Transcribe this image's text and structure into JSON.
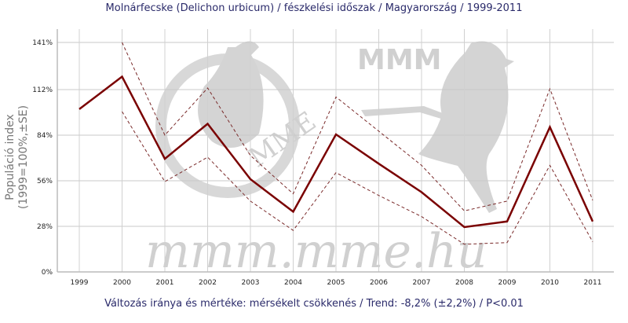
{
  "chart_data": {
    "type": "line",
    "title": "Molnárfecske (Delichon urbicum) / fészkelési időszak / Magyarország / 1999-2011",
    "ylabel_line1": "Populáció index",
    "ylabel_line2": "(1999=100%,±SE)",
    "xlabel": "",
    "footer": "Változás iránya és mértéke: mérsékelt csökkenés / Trend: -8,2% (±2,2%) / P<0.01",
    "x": [
      1999,
      2000,
      2001,
      2002,
      2003,
      2004,
      2005,
      2006,
      2007,
      2008,
      2009,
      2010,
      2011
    ],
    "ylim": [
      0,
      141
    ],
    "yticks": [
      0,
      28,
      56,
      84,
      112,
      141
    ],
    "ytick_labels": [
      "0%",
      "28%",
      "56%",
      "84%",
      "112%",
      "141%"
    ],
    "grid": true,
    "series": [
      {
        "role": "index",
        "style": "solid",
        "color": "#7a0000",
        "values": [
          100,
          120,
          69.5,
          91,
          57,
          37,
          84.5,
          66.5,
          49,
          27.5,
          31,
          89,
          31
        ]
      },
      {
        "role": "upper SE",
        "style": "dashed",
        "color": "#7a2a2a",
        "values": [
          null,
          141,
          84,
          113,
          71.5,
          48,
          107.5,
          86.5,
          65.5,
          37.5,
          43.5,
          112.5,
          44
        ]
      },
      {
        "role": "lower SE",
        "style": "dashed",
        "color": "#7a2a2a",
        "values": [
          null,
          98.5,
          55.5,
          70.5,
          43.5,
          25.5,
          61,
          47,
          34,
          17,
          18,
          65.5,
          18.5
        ]
      }
    ]
  },
  "watermarks": {
    "logo1": "MME",
    "logo2": "MMM",
    "site": "mmm.mme.hu"
  }
}
